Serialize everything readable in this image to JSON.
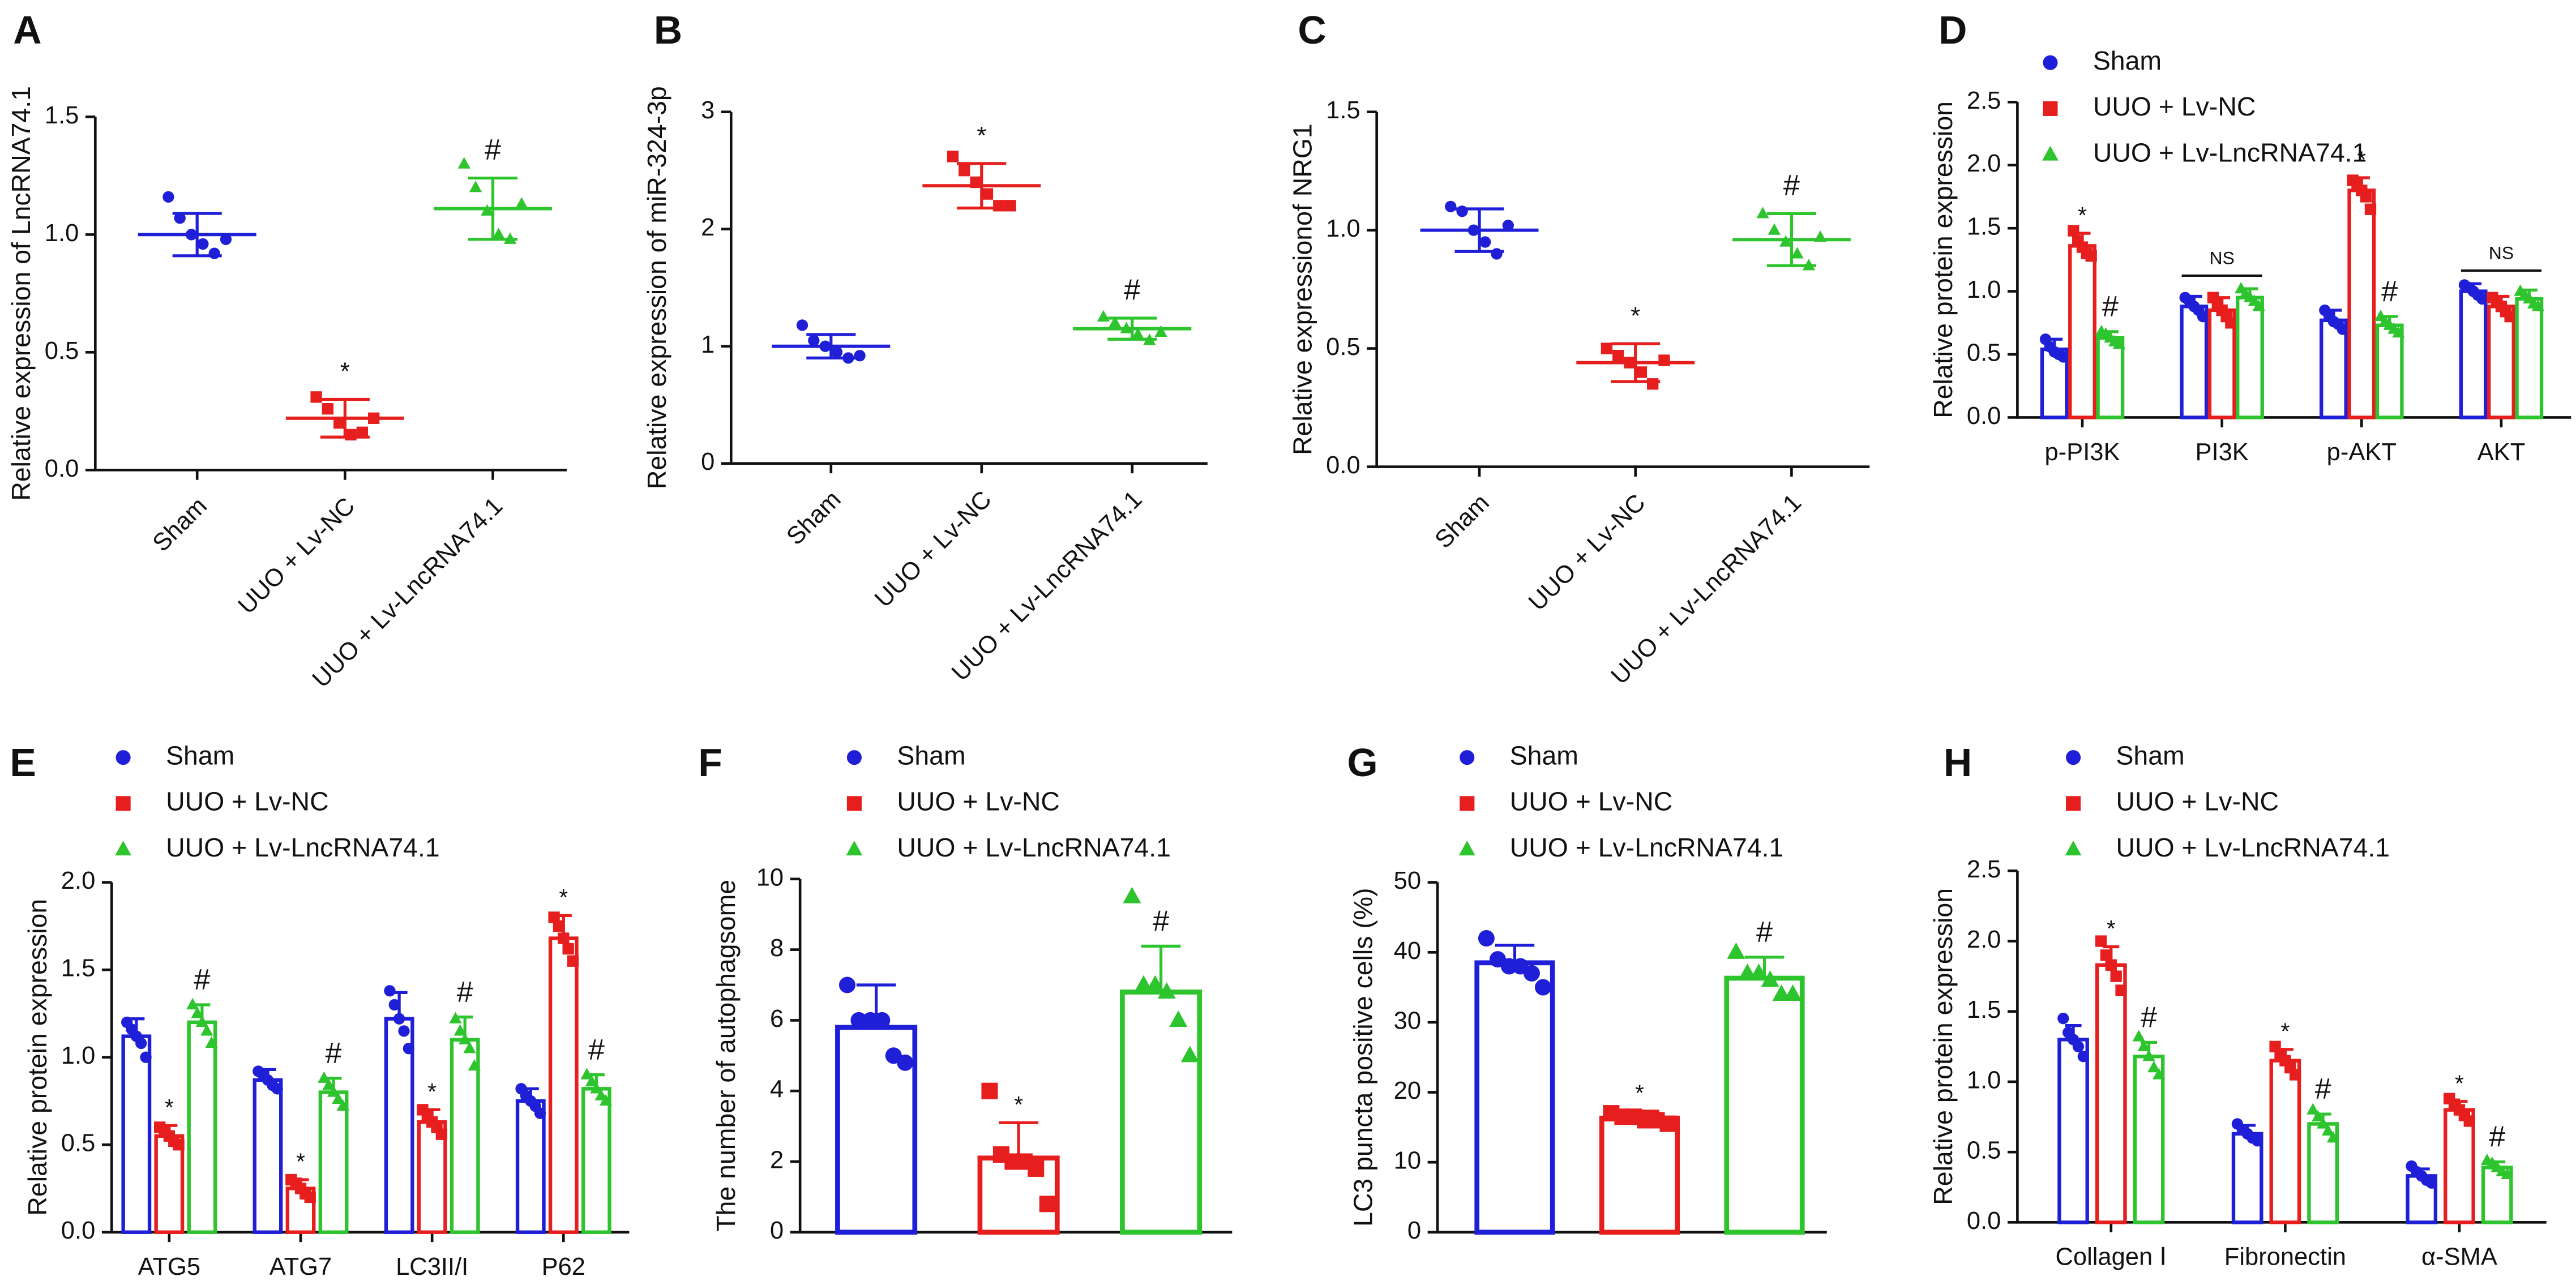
{
  "chart_data": [
    {
      "type": "dot",
      "label": "A",
      "y_label": "Relative expression of LncRNA74.1",
      "categories": [
        "Sham",
        "UUO + Lv-NC",
        "UUO + Lv-LncRNA74.1"
      ],
      "colors": [
        "#1f1fd8",
        "#e61e1e",
        "#2ec42e"
      ],
      "markers": [
        "circle",
        "square",
        "triangle"
      ],
      "means": [
        1.0,
        0.22,
        1.11
      ],
      "errors": [
        0.09,
        0.08,
        0.13
      ],
      "points": [
        [
          1.16,
          1.07,
          1.0,
          0.96,
          0.92,
          0.98
        ],
        [
          0.31,
          0.26,
          0.2,
          0.15,
          0.16,
          0.22
        ],
        [
          1.3,
          1.2,
          1.1,
          1.0,
          0.98,
          1.13
        ]
      ],
      "annotations": [
        null,
        "*",
        "#"
      ],
      "ylim": [
        0,
        1.5
      ],
      "yticks": [
        {
          "value": 0,
          "label": "0.0"
        },
        0.5,
        {
          "value": 1,
          "label": "1.0"
        },
        1.5
      ]
    },
    {
      "type": "dot",
      "label": "B",
      "y_label": "Relative expression of miR-324-3p",
      "categories": [
        "Sham",
        "UUO + Lv-NC",
        "UUO + Lv-LncRNA74.1"
      ],
      "colors": [
        "#1f1fd8",
        "#e61e1e",
        "#2ec42e"
      ],
      "markers": [
        "circle",
        "square",
        "triangle"
      ],
      "means": [
        1.0,
        2.37,
        1.15
      ],
      "errors": [
        0.1,
        0.19,
        0.09
      ],
      "points": [
        [
          1.18,
          1.05,
          1.0,
          0.95,
          0.9,
          0.92
        ],
        [
          2.62,
          2.5,
          2.4,
          2.3,
          2.2,
          2.2
        ],
        [
          1.25,
          1.2,
          1.15,
          1.1,
          1.05,
          1.12
        ]
      ],
      "annotations": [
        null,
        "*",
        "#"
      ],
      "ylim": [
        0,
        3
      ],
      "yticks": [
        0,
        1,
        2,
        3
      ]
    },
    {
      "type": "dot",
      "label": "C",
      "y_label": "Relative  expressionof NRG1",
      "categories": [
        "Sham",
        "UUO + Lv-NC",
        "UUO + Lv-LncRNA74.1"
      ],
      "colors": [
        "#1f1fd8",
        "#e61e1e",
        "#2ec42e"
      ],
      "markers": [
        "circle",
        "square",
        "triangle"
      ],
      "means": [
        1.0,
        0.44,
        0.96
      ],
      "errors": [
        0.09,
        0.08,
        0.11
      ],
      "points": [
        [
          1.1,
          1.08,
          1.0,
          0.95,
          0.9,
          1.02
        ],
        [
          0.5,
          0.47,
          0.44,
          0.4,
          0.35,
          0.45
        ],
        [
          1.07,
          1.0,
          0.95,
          0.9,
          0.85,
          0.97
        ]
      ],
      "annotations": [
        null,
        "*",
        "#"
      ],
      "ylim": [
        0,
        1.5
      ],
      "yticks": [
        {
          "value": 0,
          "label": "0.0"
        },
        0.5,
        {
          "value": 1,
          "label": "1.0"
        },
        1.5
      ]
    },
    {
      "type": "bar",
      "label": "D",
      "y_label": "Relative protein expression",
      "categories": [
        "p-PI3K",
        "PI3K",
        "p-AKT",
        "AKT"
      ],
      "group_annotations": [
        null,
        "NS",
        null,
        "NS"
      ],
      "series": [
        {
          "name": "Sham",
          "color": "#1f1fd8",
          "marker": "circle",
          "values": [
            0.54,
            0.88,
            0.77,
            1.0
          ],
          "errors": [
            0.08,
            0.08,
            0.08,
            0.06
          ],
          "points": [
            [
              0.62,
              0.56,
              0.52,
              0.5,
              0.48
            ],
            [
              0.95,
              0.92,
              0.88,
              0.85,
              0.8
            ],
            [
              0.85,
              0.8,
              0.76,
              0.74,
              0.7
            ],
            [
              1.05,
              1.03,
              1.0,
              0.97,
              0.94
            ]
          ],
          "annotations": [
            null,
            null,
            null,
            null
          ]
        },
        {
          "name": "UUO + Lv-NC",
          "color": "#e61e1e",
          "marker": "square",
          "values": [
            1.36,
            0.85,
            1.8,
            0.88
          ],
          "errors": [
            0.1,
            0.1,
            0.1,
            0.08
          ],
          "points": [
            [
              1.48,
              1.4,
              1.35,
              1.3,
              1.28
            ],
            [
              0.95,
              0.9,
              0.85,
              0.8,
              0.75
            ],
            [
              1.88,
              1.85,
              1.8,
              1.75,
              1.65
            ],
            [
              0.95,
              0.92,
              0.88,
              0.84,
              0.8
            ]
          ],
          "annotations": [
            "*",
            null,
            "*",
            null
          ]
        },
        {
          "name": "UUO + Lv-LncRNA74.1",
          "color": "#2ec42e",
          "marker": "triangle",
          "values": [
            0.63,
            0.95,
            0.73,
            0.94
          ],
          "errors": [
            0.05,
            0.07,
            0.07,
            0.07
          ],
          "points": [
            [
              0.68,
              0.66,
              0.63,
              0.6,
              0.58
            ],
            [
              1.02,
              0.98,
              0.95,
              0.92,
              0.88
            ],
            [
              0.8,
              0.76,
              0.73,
              0.7,
              0.67
            ],
            [
              1.0,
              0.97,
              0.94,
              0.9,
              0.88
            ]
          ],
          "annotations": [
            "#",
            null,
            "#",
            null
          ]
        }
      ],
      "ylim": [
        0,
        2.5
      ],
      "yticks": [
        {
          "value": 0,
          "label": "0.0"
        },
        0.5,
        {
          "value": 1,
          "label": "1.0"
        },
        1.5,
        {
          "value": 2,
          "label": "2.0"
        },
        2.5
      ]
    },
    {
      "type": "bar",
      "label": "E",
      "y_label": "Relative protein expression",
      "categories": [
        "ATG5",
        "ATG7",
        "LC3II/I",
        "P62"
      ],
      "series": [
        {
          "name": "Sham",
          "color": "#1f1fd8",
          "marker": "circle",
          "values": [
            1.12,
            0.87,
            1.22,
            0.75
          ],
          "errors": [
            0.1,
            0.06,
            0.15,
            0.07
          ],
          "points": [
            [
              1.2,
              1.16,
              1.12,
              1.08,
              1.0
            ],
            [
              0.92,
              0.9,
              0.87,
              0.84,
              0.82
            ],
            [
              1.38,
              1.3,
              1.22,
              1.15,
              1.05
            ],
            [
              0.82,
              0.78,
              0.75,
              0.72,
              0.68
            ]
          ],
          "annotations": [
            null,
            null,
            null,
            null
          ]
        },
        {
          "name": "UUO + Lv-NC",
          "color": "#e61e1e",
          "marker": "square",
          "values": [
            0.55,
            0.25,
            0.63,
            1.68
          ],
          "errors": [
            0.06,
            0.05,
            0.07,
            0.13
          ],
          "points": [
            [
              0.6,
              0.58,
              0.55,
              0.52,
              0.5
            ],
            [
              0.3,
              0.28,
              0.25,
              0.22,
              0.2
            ],
            [
              0.7,
              0.66,
              0.63,
              0.6,
              0.56
            ],
            [
              1.8,
              1.75,
              1.68,
              1.62,
              1.55
            ]
          ],
          "annotations": [
            "*",
            "*",
            "*",
            "*"
          ]
        },
        {
          "name": "UUO + Lv-LncRNA74.1",
          "color": "#2ec42e",
          "marker": "triangle",
          "values": [
            1.2,
            0.8,
            1.1,
            0.82
          ],
          "errors": [
            0.1,
            0.08,
            0.13,
            0.08
          ],
          "points": [
            [
              1.3,
              1.25,
              1.2,
              1.15,
              1.08
            ],
            [
              0.88,
              0.84,
              0.8,
              0.76,
              0.72
            ],
            [
              1.22,
              1.15,
              1.1,
              1.05,
              0.95
            ],
            [
              0.9,
              0.86,
              0.82,
              0.78,
              0.75
            ]
          ],
          "annotations": [
            "#",
            "#",
            "#",
            "#"
          ]
        }
      ],
      "ylim": [
        0,
        2
      ],
      "yticks": [
        {
          "value": 0,
          "label": "0.0"
        },
        0.5,
        {
          "value": 1,
          "label": "1.0"
        },
        1.5,
        {
          "value": 2,
          "label": "2.0"
        }
      ]
    },
    {
      "type": "bar",
      "label": "F",
      "y_label": "The number of autophagsome",
      "series": [
        {
          "name": "Sham",
          "color": "#1f1fd8",
          "marker": "circle",
          "values": [
            5.8
          ],
          "errors": [
            1.2
          ],
          "points": [
            [
              7,
              6,
              6,
              6,
              5,
              4.8
            ]
          ],
          "annotations": [
            null
          ]
        },
        {
          "name": "UUO + Lv-NC",
          "color": "#e61e1e",
          "marker": "square",
          "values": [
            2.1
          ],
          "errors": [
            1.0
          ],
          "points": [
            [
              4,
              2.2,
              2,
              2,
              1.8,
              0.8
            ]
          ],
          "annotations": [
            "*"
          ]
        },
        {
          "name": "UUO + Lv-LncRNA74.1",
          "color": "#2ec42e",
          "marker": "triangle",
          "values": [
            6.8
          ],
          "errors": [
            1.3
          ],
          "points": [
            [
              9.5,
              7,
              7,
              6.8,
              6,
              5
            ]
          ],
          "annotations": [
            "#"
          ]
        }
      ],
      "ylim": [
        0,
        10
      ],
      "yticks": [
        0,
        2,
        4,
        6,
        8,
        10
      ]
    },
    {
      "type": "bar",
      "label": "G",
      "y_label": "LC3 puncta positive cells (%)",
      "series": [
        {
          "name": "Sham",
          "color": "#1f1fd8",
          "marker": "circle",
          "values": [
            38.5
          ],
          "errors": [
            2.5
          ],
          "points": [
            [
              42,
              39,
              38,
              38,
              37,
              35
            ]
          ],
          "annotations": [
            null
          ]
        },
        {
          "name": "UUO + Lv-NC",
          "color": "#e61e1e",
          "marker": "square",
          "values": [
            16.3
          ],
          "errors": [
            1.0
          ],
          "points": [
            [
              17,
              16.5,
              16.5,
              16,
              16,
              15.5
            ]
          ],
          "annotations": [
            "*"
          ]
        },
        {
          "name": "UUO + Lv-LncRNA74.1",
          "color": "#2ec42e",
          "marker": "triangle",
          "values": [
            36.3
          ],
          "errors": [
            3.0
          ],
          "points": [
            [
              40,
              37,
              37,
              36,
              34,
              34
            ]
          ],
          "annotations": [
            "#"
          ]
        }
      ],
      "ylim": [
        0,
        50
      ],
      "yticks": [
        0,
        10,
        20,
        30,
        40,
        50
      ]
    },
    {
      "type": "bar",
      "label": "H",
      "y_label": "Relative protein expression",
      "categories": [
        "Collagen Ⅰ",
        "Fibronectin",
        "α-SMA"
      ],
      "series": [
        {
          "name": "Sham",
          "color": "#1f1fd8",
          "marker": "circle",
          "values": [
            1.3,
            0.63,
            0.33
          ],
          "errors": [
            0.1,
            0.06,
            0.05
          ],
          "points": [
            [
              1.45,
              1.35,
              1.3,
              1.25,
              1.18
            ],
            [
              0.7,
              0.66,
              0.63,
              0.6,
              0.58
            ],
            [
              0.4,
              0.36,
              0.33,
              0.3,
              0.28
            ]
          ],
          "annotations": [
            null,
            null,
            null
          ]
        },
        {
          "name": "UUO + Lv-NC",
          "color": "#e61e1e",
          "marker": "square",
          "values": [
            1.83,
            1.15,
            0.8
          ],
          "errors": [
            0.13,
            0.08,
            0.06
          ],
          "points": [
            [
              2.0,
              1.9,
              1.83,
              1.75,
              1.65
            ],
            [
              1.25,
              1.2,
              1.15,
              1.1,
              1.05
            ],
            [
              0.88,
              0.84,
              0.8,
              0.76,
              0.72
            ]
          ],
          "annotations": [
            "*",
            "*",
            "*"
          ]
        },
        {
          "name": "UUO + Lv-LncRNA74.1",
          "color": "#2ec42e",
          "marker": "triangle",
          "values": [
            1.18,
            0.7,
            0.39
          ],
          "errors": [
            0.1,
            0.07,
            0.04
          ],
          "points": [
            [
              1.32,
              1.25,
              1.18,
              1.1,
              1.05
            ],
            [
              0.8,
              0.75,
              0.7,
              0.65,
              0.6
            ],
            [
              0.44,
              0.42,
              0.39,
              0.36,
              0.34
            ]
          ],
          "annotations": [
            "#",
            "#",
            "#"
          ]
        }
      ],
      "ylim": [
        0,
        2.5
      ],
      "yticks": [
        {
          "value": 0,
          "label": "0.0"
        },
        0.5,
        {
          "value": 1,
          "label": "1.0"
        },
        1.5,
        {
          "value": 2,
          "label": "2.0"
        },
        2.5
      ]
    }
  ]
}
